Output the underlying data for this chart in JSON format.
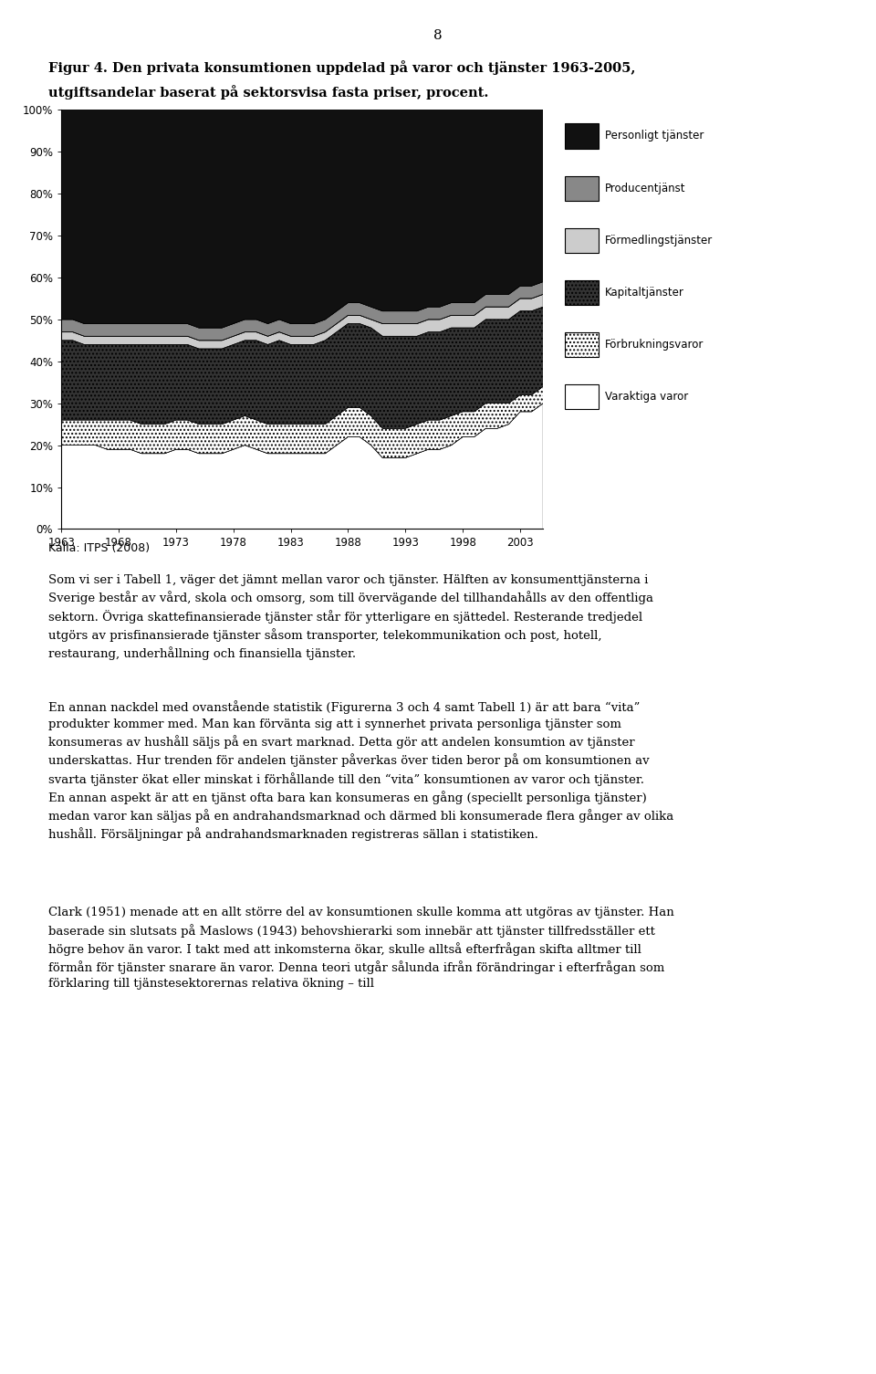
{
  "title_page": "8",
  "title_fig_line1": "Figur 4. Den privata konsumtionen uppdelad på varor och tjänster 1963-2005,",
  "title_fig_line2": "utgiftsandelar baserat på sektorsvisa fasta priser, procent.",
  "years": [
    1963,
    1964,
    1965,
    1966,
    1967,
    1968,
    1969,
    1970,
    1971,
    1972,
    1973,
    1974,
    1975,
    1976,
    1977,
    1978,
    1979,
    1980,
    1981,
    1982,
    1983,
    1984,
    1985,
    1986,
    1987,
    1988,
    1989,
    1990,
    1991,
    1992,
    1993,
    1994,
    1995,
    1996,
    1997,
    1998,
    1999,
    2000,
    2001,
    2002,
    2003,
    2004,
    2005
  ],
  "series": {
    "Varaktiga varor": [
      20,
      20,
      20,
      20,
      19,
      19,
      19,
      18,
      18,
      18,
      19,
      19,
      18,
      18,
      18,
      19,
      20,
      19,
      18,
      18,
      18,
      18,
      18,
      18,
      20,
      22,
      22,
      20,
      17,
      17,
      17,
      18,
      19,
      19,
      20,
      22,
      22,
      24,
      24,
      25,
      28,
      28,
      30
    ],
    "Forbrukningsvaror": [
      6,
      6,
      6,
      6,
      7,
      7,
      7,
      7,
      7,
      7,
      7,
      7,
      7,
      7,
      7,
      7,
      7,
      7,
      7,
      7,
      7,
      7,
      7,
      7,
      7,
      7,
      7,
      7,
      7,
      7,
      7,
      7,
      7,
      7,
      7,
      6,
      6,
      6,
      6,
      5,
      4,
      4,
      4
    ],
    "Kapitaltjanster": [
      19,
      19,
      18,
      18,
      18,
      18,
      18,
      19,
      19,
      19,
      18,
      18,
      18,
      18,
      18,
      18,
      18,
      19,
      19,
      20,
      19,
      19,
      19,
      20,
      20,
      20,
      20,
      21,
      22,
      22,
      22,
      21,
      21,
      21,
      21,
      20,
      20,
      20,
      20,
      20,
      20,
      20,
      19
    ],
    "Formedlingstjanster": [
      2,
      2,
      2,
      2,
      2,
      2,
      2,
      2,
      2,
      2,
      2,
      2,
      2,
      2,
      2,
      2,
      2,
      2,
      2,
      2,
      2,
      2,
      2,
      2,
      2,
      2,
      2,
      2,
      3,
      3,
      3,
      3,
      3,
      3,
      3,
      3,
      3,
      3,
      3,
      3,
      3,
      3,
      3
    ],
    "Producentjanst": [
      3,
      3,
      3,
      3,
      3,
      3,
      3,
      3,
      3,
      3,
      3,
      3,
      3,
      3,
      3,
      3,
      3,
      3,
      3,
      3,
      3,
      3,
      3,
      3,
      3,
      3,
      3,
      3,
      3,
      3,
      3,
      3,
      3,
      3,
      3,
      3,
      3,
      3,
      3,
      3,
      3,
      3,
      3
    ],
    "Personligt_tjanster": [
      50,
      50,
      51,
      51,
      51,
      51,
      51,
      51,
      51,
      51,
      51,
      51,
      52,
      52,
      52,
      51,
      50,
      50,
      51,
      50,
      51,
      51,
      51,
      50,
      48,
      46,
      46,
      47,
      48,
      48,
      48,
      48,
      47,
      47,
      46,
      46,
      46,
      44,
      44,
      44,
      42,
      42,
      41
    ]
  },
  "legend_items": [
    {
      "label": "Personligt tjänster",
      "fc": "#111111",
      "hatch": ""
    },
    {
      "label": "Producentjänst",
      "fc": "#aaaaaa",
      "hatch": ""
    },
    {
      "label": "Förmedlingstjänster",
      "fc": "#dddddd",
      "hatch": ""
    },
    {
      "label": "Kapitaltjänster",
      "fc": "#444444",
      "hatch": "xxx"
    },
    {
      "label": "Förbrukningsvaror",
      "fc": "#ffffff",
      "hatch": "..."
    },
    {
      "label": "Varaktiga varor",
      "fc": "#ffffff",
      "hatch": ""
    }
  ],
  "ytick_labels": [
    "0%",
    "10%",
    "20%",
    "30%",
    "40%",
    "50%",
    "60%",
    "70%",
    "80%",
    "90%",
    "100%"
  ],
  "xtick_labels": [
    "1963",
    "1968",
    "1973",
    "1978",
    "1983",
    "1988",
    "1993",
    "1998",
    "2003"
  ],
  "source_text": "Källa: ITPS (2008)",
  "para1": "    Som vi ser i Tabell 1, väger det jämnt mellan varor och tjänster. Hälften av konsumenttjänsterna i Sverige består av vård, skola och omsorg, som till övervägande del tillhandahålls av den offentliga sektorn. Övriga skattefinansierade tjänster står för ytterligare en sjättedel. Resterande tredjedel utgörs av prisfinansierade tjänster såsom transporter, telekommunikation och post, hotell, restaurang, underhållning och finansiella tjänster.",
  "para2": "    En annan nackdel med ovanstående statistik (Figurerna 3 och 4 samt Tabell 1) är att bara “vita” produkter kommer med. Man kan förvänta sig att i synnerhet privata personliga tjänster som konsumeras av hushåll säljs på en svart marknad. Detta gör att andelen konsumtion av tjänster underskattas. Hur trenden för andelen tjänster påverkas över tiden beror på om konsumtionen av svarta tjänster ökat eller minskat i förhållande till den “vita” konsumtionen av varor och tjänster. En annan aspekt är att en tjänst ofta bara kan konsumeras en gång (speciellt personliga tjänster) medan varor kan säljas på en andrahandsmarknad och därmed bli konsumerade flera gånger av olika hushåll. Försäljningar på andrahandsmarknaden registreras sällan i statistiken.",
  "para3": "    Clark (1951) menade att en allt större del av konsumtionen skulle komma att utgöras av tjänster. Han baserade sin slutsats på Maslows (1943) behovshierarki som innebär att tjänster tillfredsställer ett högre behov än varor. I takt med att inkomsterna ökar, skulle alltså efterfrågan skifta alltmer till förmån för tjänster snarare än varor. Denna teori utgår sålunda ifrån förändringar i efterfrågan som förklaring till tjänstesektorernas relativa ökning – till"
}
